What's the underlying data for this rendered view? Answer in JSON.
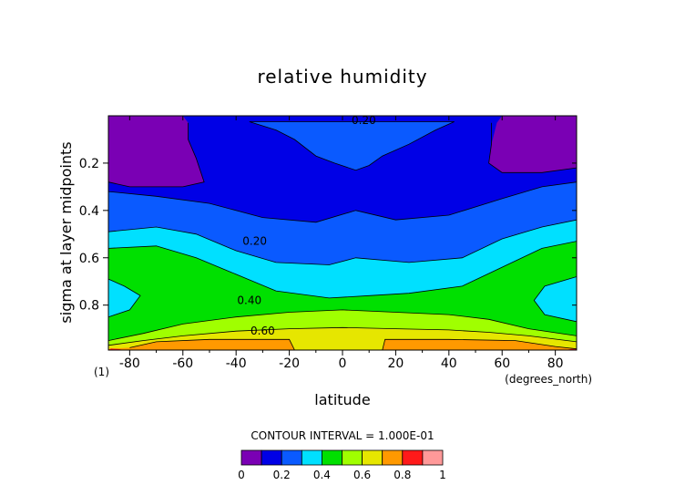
{
  "chart_data": {
    "type": "heatmap",
    "subtype": "filled-contour",
    "title": "relative humidity",
    "xlabel": "latitude",
    "x_units": "(degrees_north)",
    "ylabel": "sigma at layer midpoints",
    "ylabel_footnote": "(1)",
    "xlim": [
      -88,
      88
    ],
    "ylim": [
      0.99,
      0.0
    ],
    "x_ticks": [
      -80,
      -60,
      -40,
      -20,
      0,
      20,
      40,
      60,
      80
    ],
    "x_tick_labels": [
      "-80",
      "-60",
      "-40",
      "-20",
      "0",
      "20",
      "40",
      "60",
      "80"
    ],
    "y_ticks": [
      0.2,
      0.4,
      0.6,
      0.8
    ],
    "y_tick_labels": [
      "0.2",
      "0.4",
      "0.6",
      "0.8"
    ],
    "contour_interval_label": "CONTOUR INTERVAL = 1.000E-01",
    "contour_labels": [
      {
        "text": "0.20",
        "lat": 8,
        "sigma": 0.02
      },
      {
        "text": "0.20",
        "lat": -33,
        "sigma": 0.53
      },
      {
        "text": "0.40",
        "lat": -35,
        "sigma": 0.78
      },
      {
        "text": "0.60",
        "lat": -30,
        "sigma": 0.91
      }
    ],
    "levels": [
      0,
      0.1,
      0.2,
      0.3,
      0.4,
      0.5,
      0.6,
      0.7,
      0.8,
      0.9,
      1.0
    ],
    "colorbar": {
      "colors": [
        "#7a00b4",
        "#0000e6",
        "#0a5aff",
        "#00e0ff",
        "#00e000",
        "#a0ff00",
        "#e6e600",
        "#ff9900",
        "#ff1a1a",
        "#ff9999"
      ],
      "tick_values": [
        0,
        0.2,
        0.4,
        0.6,
        0.8,
        1
      ],
      "tick_labels": [
        "0",
        "0.2",
        "0.4",
        "0.6",
        "0.8",
        "1"
      ]
    },
    "bands": [
      {
        "level": 0.0,
        "color": "#7a00b4",
        "regions": [
          [
            [
              -88,
              0.0
            ],
            [
              88,
              0.0
            ],
            [
              88,
              0.99
            ],
            [
              -88,
              0.99
            ]
          ]
        ]
      },
      {
        "level": 0.1,
        "color": "#0000e6",
        "regions": [
          [
            [
              -88,
              0.28
            ],
            [
              -80,
              0.3
            ],
            [
              -60,
              0.3
            ],
            [
              -52,
              0.28
            ],
            [
              -55,
              0.18
            ],
            [
              -58,
              0.1
            ],
            [
              -58,
              0.03
            ],
            [
              -60,
              0.0
            ],
            [
              60,
              0.0
            ],
            [
              58,
              0.03
            ],
            [
              56,
              0.12
            ],
            [
              55,
              0.2
            ],
            [
              60,
              0.24
            ],
            [
              75,
              0.24
            ],
            [
              88,
              0.22
            ],
            [
              88,
              0.99
            ],
            [
              -88,
              0.99
            ]
          ]
        ]
      },
      {
        "level": 0.2,
        "color": "#0a5aff",
        "regions": [
          [
            [
              -88,
              0.32
            ],
            [
              -70,
              0.34
            ],
            [
              -50,
              0.37
            ],
            [
              -30,
              0.43
            ],
            [
              -10,
              0.45
            ],
            [
              5,
              0.4
            ],
            [
              20,
              0.44
            ],
            [
              40,
              0.42
            ],
            [
              60,
              0.35
            ],
            [
              75,
              0.3
            ],
            [
              88,
              0.28
            ],
            [
              88,
              0.99
            ],
            [
              -88,
              0.99
            ]
          ],
          [
            [
              -35,
              0.025
            ],
            [
              -25,
              0.06
            ],
            [
              -18,
              0.1
            ],
            [
              -10,
              0.17
            ],
            [
              -3,
              0.2
            ],
            [
              5,
              0.23
            ],
            [
              10,
              0.21
            ],
            [
              15,
              0.17
            ],
            [
              25,
              0.12
            ],
            [
              35,
              0.06
            ],
            [
              42,
              0.025
            ]
          ]
        ]
      },
      {
        "level": 0.3,
        "color": "#00e0ff",
        "regions": [
          [
            [
              -88,
              0.49
            ],
            [
              -70,
              0.47
            ],
            [
              -55,
              0.5
            ],
            [
              -40,
              0.57
            ],
            [
              -25,
              0.62
            ],
            [
              -5,
              0.63
            ],
            [
              5,
              0.6
            ],
            [
              25,
              0.62
            ],
            [
              45,
              0.6
            ],
            [
              60,
              0.52
            ],
            [
              75,
              0.47
            ],
            [
              88,
              0.44
            ],
            [
              88,
              0.99
            ],
            [
              -88,
              0.99
            ]
          ]
        ]
      },
      {
        "level": 0.4,
        "color": "#00e000",
        "regions": [
          [
            [
              -88,
              0.56
            ],
            [
              -70,
              0.55
            ],
            [
              -55,
              0.6
            ],
            [
              -40,
              0.67
            ],
            [
              -25,
              0.74
            ],
            [
              -5,
              0.77
            ],
            [
              10,
              0.76
            ],
            [
              25,
              0.75
            ],
            [
              45,
              0.72
            ],
            [
              60,
              0.64
            ],
            [
              75,
              0.56
            ],
            [
              88,
              0.53
            ],
            [
              88,
              0.99
            ],
            [
              -88,
              0.99
            ]
          ]
        ]
      },
      {
        "level": 0.3,
        "color": "#00e0ff",
        "regions": [
          [
            [
              -88,
              0.69
            ],
            [
              -82,
              0.72
            ],
            [
              -76,
              0.76
            ],
            [
              -80,
              0.82
            ],
            [
              -88,
              0.85
            ]
          ],
          [
            [
              88,
              0.68
            ],
            [
              76,
              0.72
            ],
            [
              72,
              0.78
            ],
            [
              76,
              0.84
            ],
            [
              88,
              0.87
            ]
          ]
        ]
      },
      {
        "level": 0.5,
        "color": "#a0ff00",
        "regions": [
          [
            [
              -88,
              0.95
            ],
            [
              -75,
              0.92
            ],
            [
              -60,
              0.88
            ],
            [
              -40,
              0.85
            ],
            [
              -20,
              0.83
            ],
            [
              0,
              0.82
            ],
            [
              20,
              0.83
            ],
            [
              40,
              0.84
            ],
            [
              55,
              0.86
            ],
            [
              70,
              0.9
            ],
            [
              88,
              0.93
            ],
            [
              88,
              0.99
            ],
            [
              -88,
              0.99
            ]
          ]
        ]
      },
      {
        "level": 0.6,
        "color": "#e6e600",
        "regions": [
          [
            [
              -88,
              0.97
            ],
            [
              -75,
              0.95
            ],
            [
              -60,
              0.93
            ],
            [
              -40,
              0.91
            ],
            [
              -20,
              0.9
            ],
            [
              0,
              0.895
            ],
            [
              20,
              0.9
            ],
            [
              40,
              0.905
            ],
            [
              55,
              0.915
            ],
            [
              70,
              0.93
            ],
            [
              88,
              0.955
            ],
            [
              88,
              0.99
            ],
            [
              -88,
              0.99
            ]
          ]
        ]
      },
      {
        "level": 0.7,
        "color": "#ff9900",
        "regions": [
          [
            [
              -88,
              0.985
            ],
            [
              -80,
              0.98
            ],
            [
              -70,
              0.955
            ],
            [
              -50,
              0.945
            ],
            [
              -20,
              0.945
            ],
            [
              -18,
              0.99
            ],
            [
              -88,
              0.99
            ]
          ],
          [
            [
              15,
              0.99
            ],
            [
              16,
              0.945
            ],
            [
              40,
              0.945
            ],
            [
              65,
              0.95
            ],
            [
              80,
              0.975
            ],
            [
              88,
              0.985
            ],
            [
              88,
              0.99
            ]
          ]
        ]
      },
      {
        "level": 0.8,
        "color": "#ff1a1a",
        "regions": [
          [
            [
              -88,
              0.99
            ],
            [
              -87,
              0.983
            ],
            [
              -84,
              0.986
            ],
            [
              -82,
              0.99
            ]
          ],
          [
            [
              84,
              0.99
            ],
            [
              86,
              0.985
            ],
            [
              88,
              0.985
            ],
            [
              88,
              0.99
            ]
          ]
        ]
      }
    ],
    "contour_lines": [
      [
        [
          -88,
          0.28
        ],
        [
          -80,
          0.3
        ],
        [
          -60,
          0.3
        ],
        [
          -52,
          0.28
        ],
        [
          -55,
          0.18
        ],
        [
          -58,
          0.1
        ],
        [
          -58,
          0.03
        ]
      ],
      [
        [
          56,
          0.03
        ],
        [
          56,
          0.12
        ],
        [
          55,
          0.2
        ],
        [
          60,
          0.24
        ],
        [
          75,
          0.24
        ],
        [
          88,
          0.22
        ]
      ],
      [
        [
          -88,
          0.32
        ],
        [
          -70,
          0.34
        ],
        [
          -50,
          0.37
        ],
        [
          -30,
          0.43
        ],
        [
          -10,
          0.45
        ],
        [
          5,
          0.4
        ],
        [
          20,
          0.44
        ],
        [
          40,
          0.42
        ],
        [
          60,
          0.35
        ],
        [
          75,
          0.3
        ],
        [
          88,
          0.28
        ]
      ],
      [
        [
          -35,
          0.025
        ],
        [
          -25,
          0.06
        ],
        [
          -18,
          0.1
        ],
        [
          -10,
          0.17
        ],
        [
          -3,
          0.2
        ],
        [
          5,
          0.23
        ],
        [
          10,
          0.21
        ],
        [
          15,
          0.17
        ],
        [
          25,
          0.12
        ],
        [
          35,
          0.06
        ],
        [
          42,
          0.025
        ],
        [
          -35,
          0.025
        ]
      ],
      [
        [
          -88,
          0.49
        ],
        [
          -70,
          0.47
        ],
        [
          -55,
          0.5
        ],
        [
          -40,
          0.57
        ],
        [
          -25,
          0.62
        ],
        [
          -5,
          0.63
        ],
        [
          5,
          0.6
        ],
        [
          25,
          0.62
        ],
        [
          45,
          0.6
        ],
        [
          60,
          0.52
        ],
        [
          75,
          0.47
        ],
        [
          88,
          0.44
        ]
      ],
      [
        [
          -88,
          0.56
        ],
        [
          -70,
          0.55
        ],
        [
          -55,
          0.6
        ],
        [
          -40,
          0.67
        ],
        [
          -25,
          0.74
        ],
        [
          -5,
          0.77
        ],
        [
          10,
          0.76
        ],
        [
          25,
          0.75
        ],
        [
          45,
          0.72
        ],
        [
          60,
          0.64
        ],
        [
          75,
          0.56
        ],
        [
          88,
          0.53
        ]
      ],
      [
        [
          -88,
          0.69
        ],
        [
          -82,
          0.72
        ],
        [
          -76,
          0.76
        ],
        [
          -80,
          0.82
        ],
        [
          -88,
          0.85
        ]
      ],
      [
        [
          88,
          0.68
        ],
        [
          76,
          0.72
        ],
        [
          72,
          0.78
        ],
        [
          76,
          0.84
        ],
        [
          88,
          0.87
        ]
      ],
      [
        [
          -88,
          0.95
        ],
        [
          -75,
          0.92
        ],
        [
          -60,
          0.88
        ],
        [
          -40,
          0.85
        ],
        [
          -20,
          0.83
        ],
        [
          0,
          0.82
        ],
        [
          20,
          0.83
        ],
        [
          40,
          0.84
        ],
        [
          55,
          0.86
        ],
        [
          70,
          0.9
        ],
        [
          88,
          0.93
        ]
      ],
      [
        [
          -88,
          0.97
        ],
        [
          -75,
          0.95
        ],
        [
          -60,
          0.93
        ],
        [
          -40,
          0.91
        ],
        [
          -20,
          0.9
        ],
        [
          0,
          0.895
        ],
        [
          20,
          0.9
        ],
        [
          40,
          0.905
        ],
        [
          55,
          0.915
        ],
        [
          70,
          0.93
        ],
        [
          88,
          0.955
        ]
      ],
      [
        [
          -80,
          0.98
        ],
        [
          -70,
          0.955
        ],
        [
          -50,
          0.945
        ],
        [
          -20,
          0.945
        ],
        [
          -18,
          0.99
        ]
      ],
      [
        [
          15,
          0.99
        ],
        [
          16,
          0.945
        ],
        [
          40,
          0.945
        ],
        [
          65,
          0.95
        ],
        [
          80,
          0.975
        ],
        [
          88,
          0.985
        ]
      ]
    ]
  }
}
